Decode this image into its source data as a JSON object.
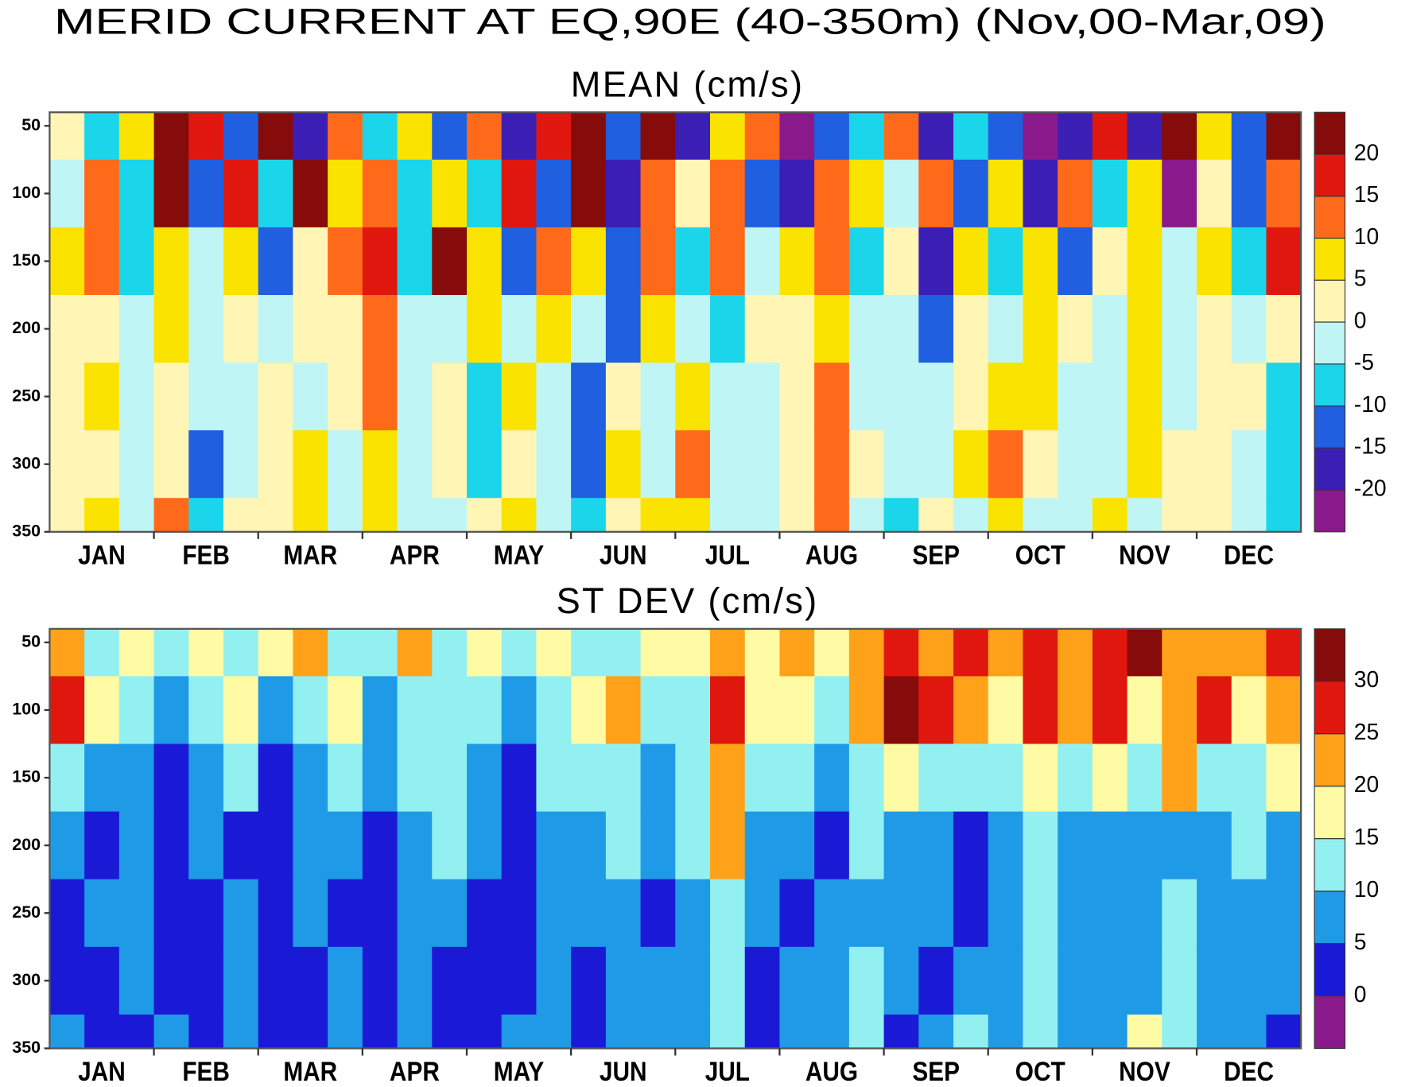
{
  "title": "MERID CURRENT AT EQ,90E (40-350m) (Nov,00-Mar,09)",
  "chart_data": [
    {
      "type": "heatmap",
      "title": "MEAN (cm/s)",
      "categories": [
        null,
        "JAN",
        null,
        null,
        "FEB",
        null,
        null,
        "MAR",
        null,
        null,
        "APR",
        null,
        null,
        "MAY",
        null,
        null,
        "JUN",
        null,
        null,
        "JUL",
        null,
        null,
        "AUG",
        null,
        null,
        "SEP",
        null,
        null,
        "OCT",
        null,
        null,
        "NOV",
        null,
        null,
        "DEC",
        null
      ],
      "y": [
        50,
        100,
        150,
        200,
        250,
        300,
        350
      ],
      "ylim": [
        40,
        350
      ],
      "yticks": [
        50,
        100,
        150,
        200,
        250,
        300,
        350
      ],
      "levels": [
        -20,
        -15,
        -10,
        -5,
        0,
        5,
        10,
        15,
        20
      ],
      "colors": [
        "#8a1a8c",
        "#3b1fb4",
        "#1f5fe0",
        "#1bd6ea",
        "#bff5f5",
        "#fff5b4",
        "#fbe300",
        "#ff6a1a",
        "#e0170f",
        "#860b0b"
      ],
      "values": [
        [
          3,
          -8,
          6,
          22,
          18,
          -12,
          22,
          -16,
          12,
          -10,
          8,
          -14,
          12,
          -18,
          15,
          22,
          -12,
          22,
          -18,
          8,
          14,
          -22,
          -14,
          -8,
          10,
          -16,
          -8,
          -12,
          -22,
          -16,
          16,
          -18,
          22,
          8,
          -12,
          22
        ],
        [
          -4,
          12,
          -8,
          22,
          -12,
          18,
          -6,
          22,
          8,
          14,
          -10,
          6,
          -8,
          16,
          -12,
          22,
          -16,
          12,
          2,
          14,
          -14,
          -16,
          12,
          6,
          -4,
          14,
          -12,
          8,
          -16,
          12,
          -6,
          8,
          -22,
          4,
          -14,
          12
        ],
        [
          8,
          14,
          -6,
          6,
          -4,
          8,
          -14,
          4,
          12,
          16,
          -6,
          20,
          6,
          -12,
          14,
          8,
          -14,
          10,
          -6,
          12,
          -4,
          6,
          10,
          -8,
          4,
          -16,
          6,
          -6,
          8,
          -12,
          2,
          6,
          -4,
          8,
          -8,
          16
        ],
        [
          4,
          2,
          -4,
          6,
          -3,
          2,
          -2,
          3,
          1,
          12,
          -3,
          -2,
          6,
          -4,
          8,
          -4,
          -12,
          6,
          -3,
          -8,
          4,
          2,
          8,
          -3,
          -3,
          -12,
          2,
          -4,
          6,
          2,
          -2,
          8,
          -3,
          2,
          -3,
          3
        ],
        [
          3,
          6,
          -3,
          2,
          -4,
          -3,
          3,
          -2,
          2,
          14,
          -2,
          4,
          -6,
          6,
          -3,
          -12,
          4,
          -3,
          6,
          -3,
          -2,
          4,
          12,
          -3,
          -3,
          -4,
          2,
          8,
          6,
          -2,
          -3,
          7,
          -3,
          2,
          3,
          -8
        ],
        [
          2,
          4,
          -3,
          3,
          -12,
          -3,
          2,
          6,
          -3,
          8,
          -2,
          2,
          -6,
          4,
          -4,
          -12,
          6,
          -3,
          12,
          -2,
          -3,
          2,
          12,
          4,
          -4,
          -3,
          6,
          12,
          4,
          -3,
          -2,
          6,
          2,
          3,
          -2,
          -6
        ],
        [
          2,
          6,
          -3,
          12,
          -8,
          4,
          3,
          8,
          -2,
          6,
          -3,
          -4,
          2,
          6,
          -3,
          -8,
          4,
          8,
          6,
          -3,
          -2,
          2,
          12,
          -3,
          -6,
          3,
          -2,
          8,
          -3,
          -2,
          6,
          -3,
          2,
          3,
          -2,
          -6
        ]
      ]
    },
    {
      "type": "heatmap",
      "title": "ST DEV (cm/s)",
      "categories": [
        null,
        "JAN",
        null,
        null,
        "FEB",
        null,
        null,
        "MAR",
        null,
        null,
        "APR",
        null,
        null,
        "MAY",
        null,
        null,
        "JUN",
        null,
        null,
        "JUL",
        null,
        null,
        "AUG",
        null,
        null,
        "SEP",
        null,
        null,
        "OCT",
        null,
        null,
        "NOV",
        null,
        null,
        "DEC",
        null
      ],
      "y": [
        50,
        100,
        150,
        200,
        250,
        300,
        350
      ],
      "ylim": [
        40,
        350
      ],
      "yticks": [
        50,
        100,
        150,
        200,
        250,
        300,
        350
      ],
      "levels": [
        0,
        5,
        10,
        15,
        20,
        25,
        30
      ],
      "colors": [
        "#8a1a8c",
        "#1a1ad6",
        "#1f9ae6",
        "#93f0f0",
        "#fffaa4",
        "#ffa21a",
        "#e0170f",
        "#860b0b"
      ],
      "values": [
        [
          22,
          12,
          16,
          14,
          18,
          12,
          16,
          22,
          12,
          14,
          20,
          12,
          16,
          12,
          18,
          14,
          12,
          16,
          18,
          22,
          16,
          20,
          18,
          24,
          28,
          24,
          26,
          22,
          28,
          24,
          26,
          32,
          20,
          24,
          22,
          26
        ],
        [
          28,
          16,
          12,
          8,
          12,
          18,
          6,
          12,
          16,
          8,
          12,
          14,
          10,
          6,
          12,
          16,
          22,
          12,
          14,
          28,
          18,
          16,
          14,
          22,
          30,
          26,
          24,
          18,
          26,
          22,
          28,
          16,
          20,
          26,
          18,
          24
        ],
        [
          12,
          8,
          6,
          4,
          6,
          12,
          4,
          8,
          12,
          6,
          10,
          12,
          8,
          4,
          10,
          12,
          14,
          8,
          12,
          22,
          10,
          12,
          8,
          14,
          16,
          12,
          14,
          10,
          18,
          12,
          16,
          10,
          24,
          14,
          10,
          16
        ],
        [
          6,
          4,
          8,
          3,
          6,
          4,
          3,
          6,
          8,
          4,
          8,
          12,
          6,
          3,
          8,
          8,
          12,
          6,
          10,
          24,
          8,
          6,
          4,
          10,
          6,
          8,
          4,
          6,
          12,
          8,
          6,
          8,
          6,
          8,
          10,
          6
        ],
        [
          4,
          6,
          8,
          3,
          4,
          6,
          3,
          6,
          4,
          3,
          8,
          6,
          4,
          3,
          6,
          6,
          8,
          4,
          8,
          14,
          6,
          4,
          6,
          8,
          8,
          6,
          4,
          6,
          14,
          8,
          6,
          8,
          12,
          6,
          8,
          6
        ],
        [
          4,
          3,
          6,
          4,
          3,
          6,
          3,
          2,
          6,
          3,
          6,
          4,
          3,
          4,
          6,
          4,
          6,
          8,
          6,
          10,
          4,
          6,
          8,
          14,
          6,
          4,
          8,
          6,
          12,
          8,
          8,
          6,
          14,
          6,
          8,
          6
        ],
        [
          6,
          3,
          4,
          6,
          3,
          8,
          3,
          4,
          6,
          3,
          6,
          4,
          3,
          6,
          8,
          4,
          8,
          6,
          6,
          10,
          4,
          6,
          8,
          12,
          4,
          6,
          10,
          8,
          12,
          6,
          8,
          16,
          12,
          6,
          8,
          4
        ]
      ]
    }
  ]
}
